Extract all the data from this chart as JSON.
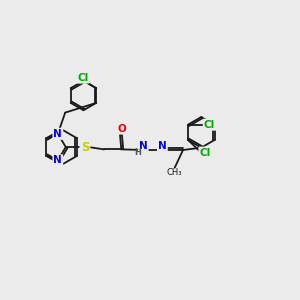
{
  "background_color": "#ebebeb",
  "bond_color": "#1a1a1a",
  "atom_colors": {
    "N": "#0000ee",
    "O": "#ee0000",
    "S": "#cccc00",
    "Cl": "#00aa00",
    "C": "#1a1a1a",
    "H": "#555555"
  },
  "figsize": [
    3.0,
    3.0
  ],
  "dpi": 100
}
